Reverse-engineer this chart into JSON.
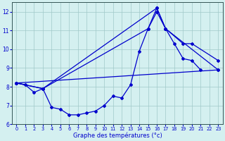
{
  "title": "Graphe des températures (°c)",
  "background_color": "#d4f0f0",
  "grid_color": "#a0c8c8",
  "line_color": "#0000cc",
  "ylim": [
    6,
    12.5
  ],
  "xlim": [
    -0.5,
    23.5
  ],
  "yticks": [
    6,
    7,
    8,
    9,
    10,
    11,
    12
  ],
  "xticks": [
    0,
    1,
    2,
    3,
    4,
    5,
    6,
    7,
    8,
    9,
    10,
    11,
    12,
    13,
    14,
    15,
    16,
    17,
    18,
    19,
    20,
    21,
    22,
    23
  ],
  "line1_x": [
    0,
    1,
    2,
    3,
    4,
    5,
    6,
    7,
    8,
    9,
    10,
    11,
    12,
    13,
    14,
    15,
    16,
    17,
    18,
    19,
    20,
    21
  ],
  "line1_y": [
    8.2,
    8.1,
    7.7,
    7.9,
    6.9,
    6.8,
    6.5,
    6.5,
    6.6,
    6.7,
    7.0,
    7.5,
    7.4,
    8.1,
    9.9,
    11.1,
    12.0,
    11.1,
    10.3,
    9.5,
    9.4,
    8.9
  ],
  "line2_x": [
    0,
    3,
    15,
    16,
    17,
    19,
    20,
    23
  ],
  "line2_y": [
    8.2,
    7.9,
    11.1,
    12.2,
    11.1,
    10.3,
    10.3,
    9.4
  ],
  "line3_x": [
    0,
    3,
    16,
    17,
    23
  ],
  "line3_y": [
    8.2,
    7.9,
    12.2,
    11.1,
    8.9
  ],
  "line4_x": [
    0,
    23
  ],
  "line4_y": [
    8.2,
    8.9
  ]
}
